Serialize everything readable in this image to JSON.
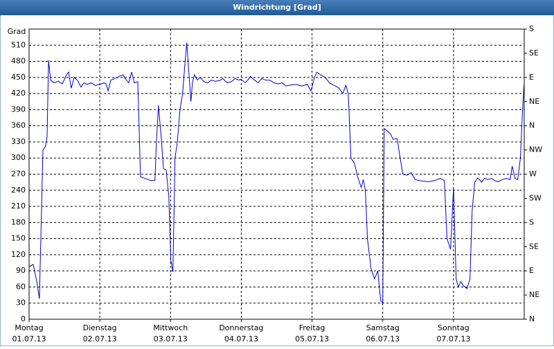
{
  "chart_data": {
    "type": "line",
    "title": "Windrichtung [Grad]",
    "y_label": "Grad",
    "color": "#0000cc",
    "grid": true,
    "xlim": [
      0,
      168
    ],
    "xticks": [
      {
        "value": 0,
        "label": "Montag"
      },
      {
        "value": 24,
        "label": "Dienstag"
      },
      {
        "value": 48,
        "label": "Mittwoch"
      },
      {
        "value": 72,
        "label": "Donnerstag"
      },
      {
        "value": 96,
        "label": "Freitag"
      },
      {
        "value": 120,
        "label": "Samstag"
      },
      {
        "value": 144,
        "label": "Sonntag"
      }
    ],
    "xtick_dates": [
      "01.07.13",
      "02.07.13",
      "03.07.13",
      "04.07.13",
      "05.07.13",
      "06.07.13",
      "07.07.13"
    ],
    "ylim": [
      0,
      540
    ],
    "yticks": [
      0,
      30,
      60,
      90,
      120,
      150,
      180,
      210,
      240,
      270,
      300,
      330,
      360,
      390,
      420,
      450,
      480,
      510
    ],
    "y2lim": [
      0,
      540
    ],
    "y2ticks": [
      {
        "value": 0,
        "label": "N"
      },
      {
        "value": 45,
        "label": "NE"
      },
      {
        "value": 90,
        "label": "E"
      },
      {
        "value": 135,
        "label": "SE"
      },
      {
        "value": 180,
        "label": "S"
      },
      {
        "value": 225,
        "label": "SW"
      },
      {
        "value": 270,
        "label": "W"
      },
      {
        "value": 315,
        "label": "NW"
      },
      {
        "value": 360,
        "label": "N"
      },
      {
        "value": 405,
        "label": "NE"
      },
      {
        "value": 450,
        "label": "E"
      },
      {
        "value": 495,
        "label": "SE"
      },
      {
        "value": 540,
        "label": "S"
      }
    ],
    "x": [
      0,
      1.4,
      2.6,
      3.5,
      4.7,
      5.6,
      6.1,
      6.6,
      7.3,
      8.5,
      9.9,
      11.3,
      12.7,
      13.4,
      14.3,
      15.3,
      16.4,
      17.6,
      18.6,
      19.7,
      21.1,
      22.5,
      24.0,
      25.4,
      26.1,
      26.8,
      27.7,
      29.1,
      30.5,
      31.9,
      32.6,
      33.8,
      34.8,
      35.7,
      36.9,
      37.8,
      39.4,
      41.3,
      42.7,
      43.2,
      43.9,
      44.8,
      45.6,
      46.5,
      47.4,
      48.1,
      48.8,
      49.5,
      50.3,
      51.2,
      52.1,
      52.8,
      53.5,
      54.2,
      54.9,
      55.4,
      56.1,
      57.1,
      58.0,
      59.4,
      60.6,
      61.8,
      63.2,
      64.6,
      65.7,
      67.2,
      68.6,
      70.0,
      71.2,
      71.9,
      73.3,
      74.2,
      75.1,
      76.5,
      77.7,
      78.9,
      80.3,
      81.7,
      83.1,
      84.5,
      85.9,
      87.1,
      88.8,
      90.6,
      92.5,
      94.4,
      95.6,
      96.0,
      96.7,
      97.6,
      98.9,
      100.5,
      101.9,
      103.6,
      105.2,
      106.4,
      107.5,
      108.3,
      109.2,
      110.4,
      111.5,
      112.7,
      113.4,
      114.1,
      114.8,
      116.0,
      117.2,
      118.3,
      119.3,
      120.0,
      120.5,
      121.6,
      122.6,
      123.5,
      124.9,
      125.9,
      126.8,
      128.2,
      129.6,
      131.0,
      132.4,
      133.8,
      135.7,
      137.6,
      139.5,
      140.9,
      141.8,
      143.0,
      144.0,
      144.9,
      145.6,
      146.5,
      147.4,
      148.6,
      149.6,
      150.3,
      151.2,
      152.2,
      153.6,
      154.5,
      155.7,
      156.9,
      158.0,
      159.2,
      160.6,
      162.0,
      163.2,
      163.9,
      164.9,
      165.8,
      166.7,
      167.4,
      167.9
    ],
    "values": [
      98,
      102,
      70,
      38,
      315,
      322,
      340,
      482,
      445,
      440,
      443,
      438,
      455,
      460,
      430,
      450,
      445,
      432,
      440,
      437,
      440,
      435,
      437,
      440,
      438,
      425,
      445,
      448,
      452,
      455,
      448,
      440,
      460,
      440,
      442,
      265,
      262,
      258,
      258,
      330,
      398,
      340,
      280,
      278,
      230,
      110,
      88,
      300,
      330,
      390,
      420,
      470,
      515,
      460,
      405,
      440,
      455,
      445,
      450,
      442,
      440,
      445,
      443,
      444,
      448,
      440,
      442,
      448,
      445,
      447,
      440,
      445,
      452,
      445,
      440,
      448,
      445,
      445,
      440,
      438,
      440,
      434,
      436,
      437,
      434,
      437,
      425,
      432,
      448,
      460,
      455,
      450,
      440,
      435,
      430,
      420,
      435,
      420,
      300,
      290,
      265,
      245,
      260,
      240,
      150,
      95,
      75,
      90,
      35,
      30,
      355,
      350,
      345,
      335,
      336,
      300,
      270,
      268,
      273,
      260,
      258,
      257,
      256,
      258,
      262,
      258,
      150,
      130,
      245,
      75,
      60,
      70,
      62,
      57,
      75,
      200,
      255,
      263,
      255,
      262,
      260,
      262,
      258,
      256,
      260,
      262,
      260,
      285,
      262,
      260,
      300,
      385,
      435
    ]
  }
}
